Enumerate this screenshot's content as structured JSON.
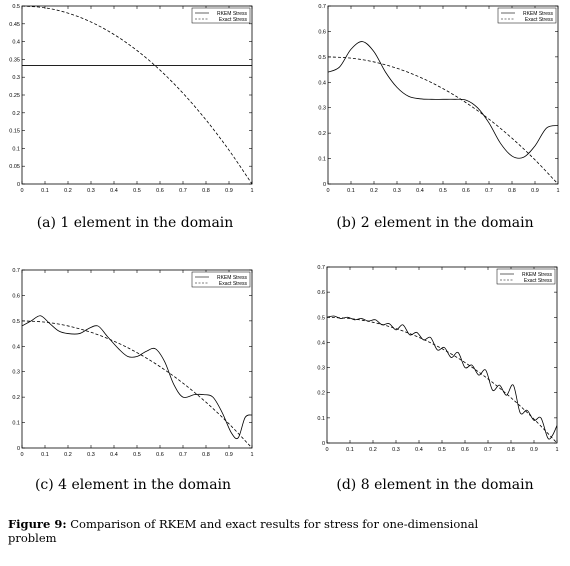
{
  "figure_caption": {
    "label": "Figure 9:",
    "text": "Comparison of RKEM and exact results for stress for one-dimensional problem"
  },
  "panels": [
    {
      "caption": "(a) 1 element in the domain"
    },
    {
      "caption": "(b) 2 element in the domain"
    },
    {
      "caption": "(c) 4 element in the domain"
    },
    {
      "caption": "(d) 8 element in the domain"
    }
  ],
  "chart_data": [
    {
      "type": "line",
      "xlim": [
        0,
        1
      ],
      "ylim": [
        0,
        0.5
      ],
      "xticks": [
        "0",
        "0.1",
        "0.2",
        "0.3",
        "0.4",
        "0.5",
        "0.6",
        "0.7",
        "0.8",
        "0.9",
        "1"
      ],
      "yticks": [
        "0",
        "0.05",
        "0.1",
        "0.15",
        "0.2",
        "0.25",
        "0.3",
        "0.35",
        "0.4",
        "0.45",
        "0.5"
      ],
      "legend_position": "top-right",
      "grid": false,
      "series": [
        {
          "name": "RKEM Stress",
          "style": "solid",
          "x": [
            0,
            1
          ],
          "y": [
            0.333,
            0.333
          ]
        },
        {
          "name": "Exact Stress",
          "style": "dashed",
          "x": [
            0,
            0.1,
            0.2,
            0.3,
            0.4,
            0.5,
            0.6,
            0.7,
            0.8,
            0.9,
            1
          ],
          "y": [
            0.5,
            0.495,
            0.48,
            0.455,
            0.42,
            0.375,
            0.32,
            0.255,
            0.18,
            0.095,
            0
          ]
        }
      ]
    },
    {
      "type": "line",
      "xlim": [
        0,
        1
      ],
      "ylim": [
        0,
        0.7
      ],
      "xticks": [
        "0",
        "0.1",
        "0.2",
        "0.3",
        "0.4",
        "0.5",
        "0.6",
        "0.7",
        "0.8",
        "0.9",
        "1"
      ],
      "yticks": [
        "0",
        "0.1",
        "0.2",
        "0.3",
        "0.4",
        "0.5",
        "0.6",
        "0.7"
      ],
      "legend_position": "top-right",
      "grid": false,
      "series": [
        {
          "name": "RKEM Stress",
          "style": "solid",
          "x": [
            0,
            0.05,
            0.1,
            0.15,
            0.2,
            0.25,
            0.3,
            0.35,
            0.4,
            0.45,
            0.5,
            0.55,
            0.6,
            0.65,
            0.7,
            0.75,
            0.8,
            0.85,
            0.9,
            0.95,
            1
          ],
          "y": [
            0.44,
            0.46,
            0.53,
            0.56,
            0.52,
            0.44,
            0.38,
            0.345,
            0.335,
            0.333,
            0.333,
            0.333,
            0.33,
            0.3,
            0.24,
            0.16,
            0.11,
            0.105,
            0.15,
            0.22,
            0.23
          ]
        },
        {
          "name": "Exact Stress",
          "style": "dashed",
          "x": [
            0,
            0.1,
            0.2,
            0.3,
            0.4,
            0.5,
            0.6,
            0.7,
            0.8,
            0.9,
            1
          ],
          "y": [
            0.5,
            0.495,
            0.48,
            0.455,
            0.42,
            0.375,
            0.32,
            0.255,
            0.18,
            0.095,
            0
          ]
        }
      ]
    },
    {
      "type": "line",
      "xlim": [
        0,
        1
      ],
      "ylim": [
        0,
        0.7
      ],
      "xticks": [
        "0",
        "0.1",
        "0.2",
        "0.3",
        "0.4",
        "0.5",
        "0.6",
        "0.7",
        "0.8",
        "0.9",
        "1"
      ],
      "yticks": [
        "0",
        "0.1",
        "0.2",
        "0.3",
        "0.4",
        "0.5",
        "0.6",
        "0.7"
      ],
      "legend_position": "top-right",
      "grid": false,
      "series": [
        {
          "name": "RKEM Stress",
          "style": "solid",
          "x": [
            0,
            0.04,
            0.08,
            0.12,
            0.16,
            0.2,
            0.25,
            0.29,
            0.33,
            0.37,
            0.42,
            0.46,
            0.5,
            0.54,
            0.58,
            0.62,
            0.66,
            0.7,
            0.75,
            0.79,
            0.83,
            0.87,
            0.91,
            0.94,
            0.97,
            1
          ],
          "y": [
            0.48,
            0.5,
            0.52,
            0.49,
            0.46,
            0.45,
            0.45,
            0.47,
            0.48,
            0.44,
            0.39,
            0.36,
            0.36,
            0.38,
            0.39,
            0.34,
            0.25,
            0.2,
            0.21,
            0.21,
            0.2,
            0.14,
            0.06,
            0.04,
            0.12,
            0.13
          ]
        },
        {
          "name": "Exact Stress",
          "style": "dashed",
          "x": [
            0,
            0.1,
            0.2,
            0.3,
            0.4,
            0.5,
            0.6,
            0.7,
            0.8,
            0.9,
            1
          ],
          "y": [
            0.5,
            0.495,
            0.48,
            0.455,
            0.42,
            0.375,
            0.32,
            0.255,
            0.18,
            0.095,
            0
          ]
        }
      ]
    },
    {
      "type": "line",
      "xlim": [
        0,
        1
      ],
      "ylim": [
        0,
        0.7
      ],
      "xticks": [
        "0",
        "0.1",
        "0.2",
        "0.3",
        "0.4",
        "0.5",
        "0.6",
        "0.7",
        "0.8",
        "0.9",
        "1"
      ],
      "yticks": [
        "0",
        "0.1",
        "0.2",
        "0.3",
        "0.4",
        "0.5",
        "0.6",
        "0.7"
      ],
      "legend_position": "top-right",
      "grid": false,
      "series": [
        {
          "name": "RKEM Stress",
          "style": "solid",
          "x": [
            0,
            0.03,
            0.06,
            0.09,
            0.12,
            0.15,
            0.18,
            0.21,
            0.24,
            0.27,
            0.3,
            0.33,
            0.36,
            0.39,
            0.42,
            0.45,
            0.48,
            0.51,
            0.54,
            0.57,
            0.6,
            0.63,
            0.66,
            0.69,
            0.72,
            0.75,
            0.78,
            0.81,
            0.84,
            0.87,
            0.9,
            0.93,
            0.96,
            0.98,
            1
          ],
          "y": [
            0.5,
            0.505,
            0.495,
            0.5,
            0.49,
            0.495,
            0.485,
            0.49,
            0.47,
            0.475,
            0.45,
            0.47,
            0.43,
            0.44,
            0.41,
            0.42,
            0.37,
            0.38,
            0.34,
            0.36,
            0.3,
            0.31,
            0.27,
            0.29,
            0.21,
            0.23,
            0.19,
            0.23,
            0.12,
            0.13,
            0.09,
            0.1,
            0.02,
            0.03,
            0.07
          ]
        },
        {
          "name": "Exact Stress",
          "style": "dashed",
          "x": [
            0,
            0.1,
            0.2,
            0.3,
            0.4,
            0.5,
            0.6,
            0.7,
            0.8,
            0.9,
            1
          ],
          "y": [
            0.5,
            0.495,
            0.48,
            0.455,
            0.42,
            0.375,
            0.32,
            0.255,
            0.18,
            0.095,
            0
          ]
        }
      ]
    }
  ]
}
